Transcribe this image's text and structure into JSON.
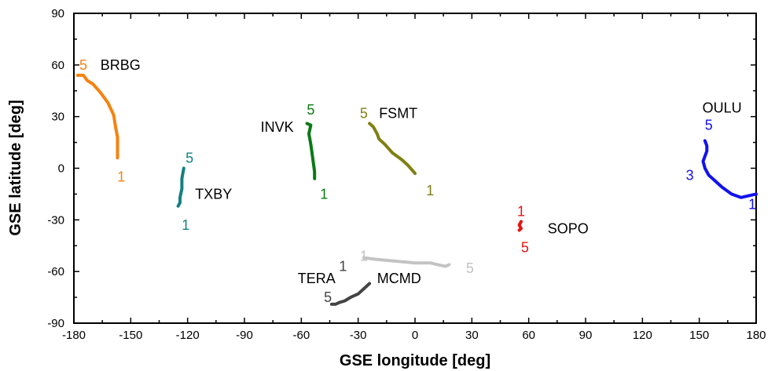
{
  "chart_data": {
    "type": "line",
    "title": "",
    "xlabel": "GSE longitude [deg]",
    "ylabel": "GSE latitude [deg]",
    "xlim": [
      -180,
      180
    ],
    "ylim": [
      -90,
      90
    ],
    "xticks": [
      "-180",
      "-150",
      "-120",
      "-90",
      "-60",
      "-30",
      "0",
      "30",
      "60",
      "90",
      "120",
      "150",
      "180"
    ],
    "yticks": [
      "-90",
      "-60",
      "-30",
      "0",
      "30",
      "60",
      "90"
    ],
    "grid": false,
    "series": [
      {
        "name": "BRBG",
        "color": "#f5820f",
        "points": [
          [
            -178,
            54
          ],
          [
            -175,
            54
          ],
          [
            -173,
            51
          ],
          [
            -170,
            49
          ],
          [
            -166,
            44
          ],
          [
            -162,
            38
          ],
          [
            -159,
            31
          ],
          [
            -158,
            24
          ],
          [
            -157,
            18
          ],
          [
            -157,
            12
          ],
          [
            -157,
            6
          ]
        ],
        "markers": [
          {
            "text": "5",
            "x": -175,
            "y": 60
          },
          {
            "text": "1",
            "x": -155,
            "y": -5
          }
        ]
      },
      {
        "name": "TXBY",
        "color": "#158080",
        "points": [
          [
            -122,
            0
          ],
          [
            -123,
            -6
          ],
          [
            -123,
            -12
          ],
          [
            -124,
            -17
          ],
          [
            -124,
            -20
          ],
          [
            -125,
            -22
          ]
        ],
        "markers": [
          {
            "text": "5",
            "x": -119,
            "y": 6
          },
          {
            "text": "1",
            "x": -121,
            "y": -33
          }
        ]
      },
      {
        "name": "INVK",
        "color": "#0a7a14",
        "points": [
          [
            -57,
            26
          ],
          [
            -55,
            25
          ],
          [
            -56,
            20
          ],
          [
            -55,
            14
          ],
          [
            -54,
            6
          ],
          [
            -53,
            -2
          ],
          [
            -53,
            -6
          ]
        ],
        "markers": [
          {
            "text": "5",
            "x": -55,
            "y": 34
          },
          {
            "text": "1",
            "x": -48,
            "y": -15
          }
        ]
      },
      {
        "name": "FSMT",
        "color": "#7f7f14",
        "points": [
          [
            -24,
            26
          ],
          [
            -22,
            24
          ],
          [
            -20,
            20
          ],
          [
            -19,
            17
          ],
          [
            -16,
            14
          ],
          [
            -12,
            9
          ],
          [
            -7,
            5
          ],
          [
            -4,
            2
          ],
          [
            0,
            -3
          ]
        ],
        "markers": [
          {
            "text": "5",
            "x": -27,
            "y": 32
          },
          {
            "text": "1",
            "x": 8,
            "y": -13
          }
        ]
      },
      {
        "name": "OULU",
        "color": "#1212ee",
        "points": [
          [
            153,
            16
          ],
          [
            154,
            13
          ],
          [
            154,
            10
          ],
          [
            153,
            7
          ],
          [
            152,
            4
          ],
          [
            153,
            0
          ],
          [
            155,
            -4
          ],
          [
            158,
            -7
          ],
          [
            162,
            -11
          ],
          [
            167,
            -15
          ],
          [
            172,
            -17
          ],
          [
            176,
            -16
          ],
          [
            180,
            -15
          ]
        ],
        "markers": [
          {
            "text": "5",
            "x": 155,
            "y": 25
          },
          {
            "text": "3",
            "x": 145,
            "y": -4
          },
          {
            "text": "1",
            "x": 178,
            "y": -21
          }
        ]
      },
      {
        "name": "SOPO",
        "color": "#e61414",
        "points": [
          [
            56,
            -31
          ],
          [
            55,
            -33
          ],
          [
            56,
            -35
          ],
          [
            55,
            -36
          ],
          [
            56,
            -35
          ]
        ],
        "markers": [
          {
            "text": "1",
            "x": 56,
            "y": -25
          },
          {
            "text": "5",
            "x": 58,
            "y": -46
          }
        ]
      },
      {
        "name": "MCMD",
        "color": "#c3c3c3",
        "points": [
          [
            -27,
            -52
          ],
          [
            -20,
            -53
          ],
          [
            -10,
            -54
          ],
          [
            0,
            -55
          ],
          [
            8,
            -55
          ],
          [
            12,
            -56
          ],
          [
            16,
            -57
          ],
          [
            18,
            -56
          ]
        ],
        "markers": [
          {
            "text": "1",
            "x": -27,
            "y": -51
          },
          {
            "text": "5",
            "x": 29,
            "y": -58
          }
        ]
      },
      {
        "name": "TERA",
        "color": "#444444",
        "points": [
          [
            -24,
            -67
          ],
          [
            -27,
            -70
          ],
          [
            -30,
            -73
          ],
          [
            -34,
            -75
          ],
          [
            -37,
            -77
          ],
          [
            -40,
            -78
          ],
          [
            -42,
            -79
          ],
          [
            -44,
            -79
          ]
        ],
        "markers": [
          {
            "text": "1",
            "x": -38,
            "y": -57
          },
          {
            "text": "5",
            "x": -46,
            "y": -75
          }
        ]
      }
    ],
    "labels": [
      {
        "text": "BRBG",
        "x": -166,
        "y": 60,
        "anchor": "start"
      },
      {
        "text": "TXBY",
        "x": -116,
        "y": -15,
        "anchor": "start"
      },
      {
        "text": "INVK",
        "x": -64,
        "y": 24,
        "anchor": "end"
      },
      {
        "text": "FSMT",
        "x": -19,
        "y": 32,
        "anchor": "start"
      },
      {
        "text": "OULU",
        "x": 162,
        "y": 35,
        "anchor": "middle"
      },
      {
        "text": "SOPO",
        "x": 70,
        "y": -35,
        "anchor": "start"
      },
      {
        "text": "MCMD",
        "x": -20,
        "y": -64,
        "anchor": "start"
      },
      {
        "text": "TERA",
        "x": -42,
        "y": -64,
        "anchor": "end"
      }
    ]
  }
}
